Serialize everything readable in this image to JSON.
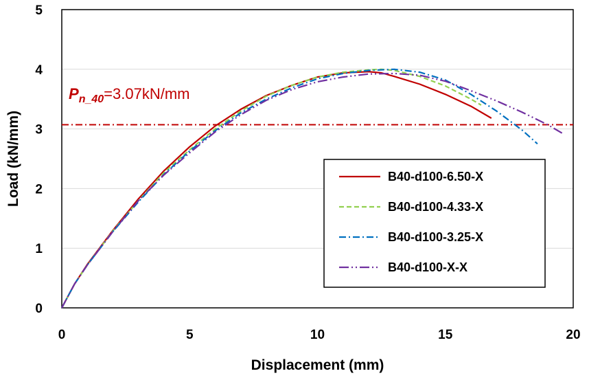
{
  "chart_data": {
    "type": "line",
    "xlabel": "Displacement (mm)",
    "ylabel": "Load (kN/mm)",
    "xlim": [
      0,
      20
    ],
    "ylim": [
      0,
      5
    ],
    "xticks": [
      0,
      5,
      10,
      15,
      20
    ],
    "yticks": [
      0,
      1,
      2,
      3,
      4,
      5
    ],
    "grid": "horizontal",
    "legend": "bottom-right",
    "reference_line": {
      "y": 3.07,
      "color": "#c00000",
      "label_main": "P",
      "label_sub": "n_40",
      "label_value": "=3.07kN/mm"
    },
    "series": [
      {
        "name": "B40-d100-6.50-X",
        "color": "#c00000",
        "dash": "solid",
        "x": [
          0,
          0.5,
          1,
          2,
          3,
          4,
          5,
          6,
          7,
          8,
          9,
          10,
          11,
          12,
          12.5,
          13,
          14,
          15,
          16,
          16.8
        ],
        "y": [
          0,
          0.4,
          0.73,
          1.3,
          1.83,
          2.3,
          2.7,
          3.05,
          3.33,
          3.56,
          3.73,
          3.87,
          3.94,
          3.96,
          3.94,
          3.88,
          3.75,
          3.58,
          3.38,
          3.18
        ]
      },
      {
        "name": "B40-d100-4.33-X",
        "color": "#92d050",
        "dash": "dashed",
        "x": [
          0,
          0.5,
          1,
          2,
          3,
          4,
          5,
          6,
          7,
          8,
          9,
          10,
          11,
          12,
          12.5,
          13,
          14,
          15,
          16,
          16.4
        ],
        "y": [
          0,
          0.4,
          0.72,
          1.29,
          1.8,
          2.27,
          2.65,
          3.0,
          3.3,
          3.55,
          3.73,
          3.87,
          3.95,
          3.99,
          4.0,
          3.98,
          3.88,
          3.72,
          3.5,
          3.4
        ]
      },
      {
        "name": "B40-d100-3.25-X",
        "color": "#0070c0",
        "dash": "dashdot",
        "x": [
          0,
          0.5,
          1,
          2,
          3,
          4,
          5,
          6,
          7,
          8,
          9,
          10,
          11,
          12,
          13,
          14,
          15,
          16,
          17,
          18,
          18.6
        ],
        "y": [
          0,
          0.4,
          0.72,
          1.28,
          1.78,
          2.24,
          2.63,
          2.97,
          3.27,
          3.5,
          3.69,
          3.84,
          3.93,
          3.98,
          4.0,
          3.95,
          3.82,
          3.58,
          3.3,
          2.98,
          2.75
        ]
      },
      {
        "name": "B40-d100-X-X",
        "color": "#7030a0",
        "dash": "dashdotdot",
        "x": [
          0,
          0.5,
          1,
          2,
          3,
          4,
          5,
          6,
          7,
          8,
          9,
          10,
          11,
          12,
          13,
          14,
          15,
          16,
          17,
          18,
          19,
          19.6
        ],
        "y": [
          0,
          0.4,
          0.72,
          1.28,
          1.8,
          2.23,
          2.6,
          2.95,
          3.24,
          3.48,
          3.66,
          3.79,
          3.87,
          3.92,
          3.93,
          3.9,
          3.8,
          3.64,
          3.47,
          3.28,
          3.07,
          2.92
        ]
      }
    ]
  }
}
